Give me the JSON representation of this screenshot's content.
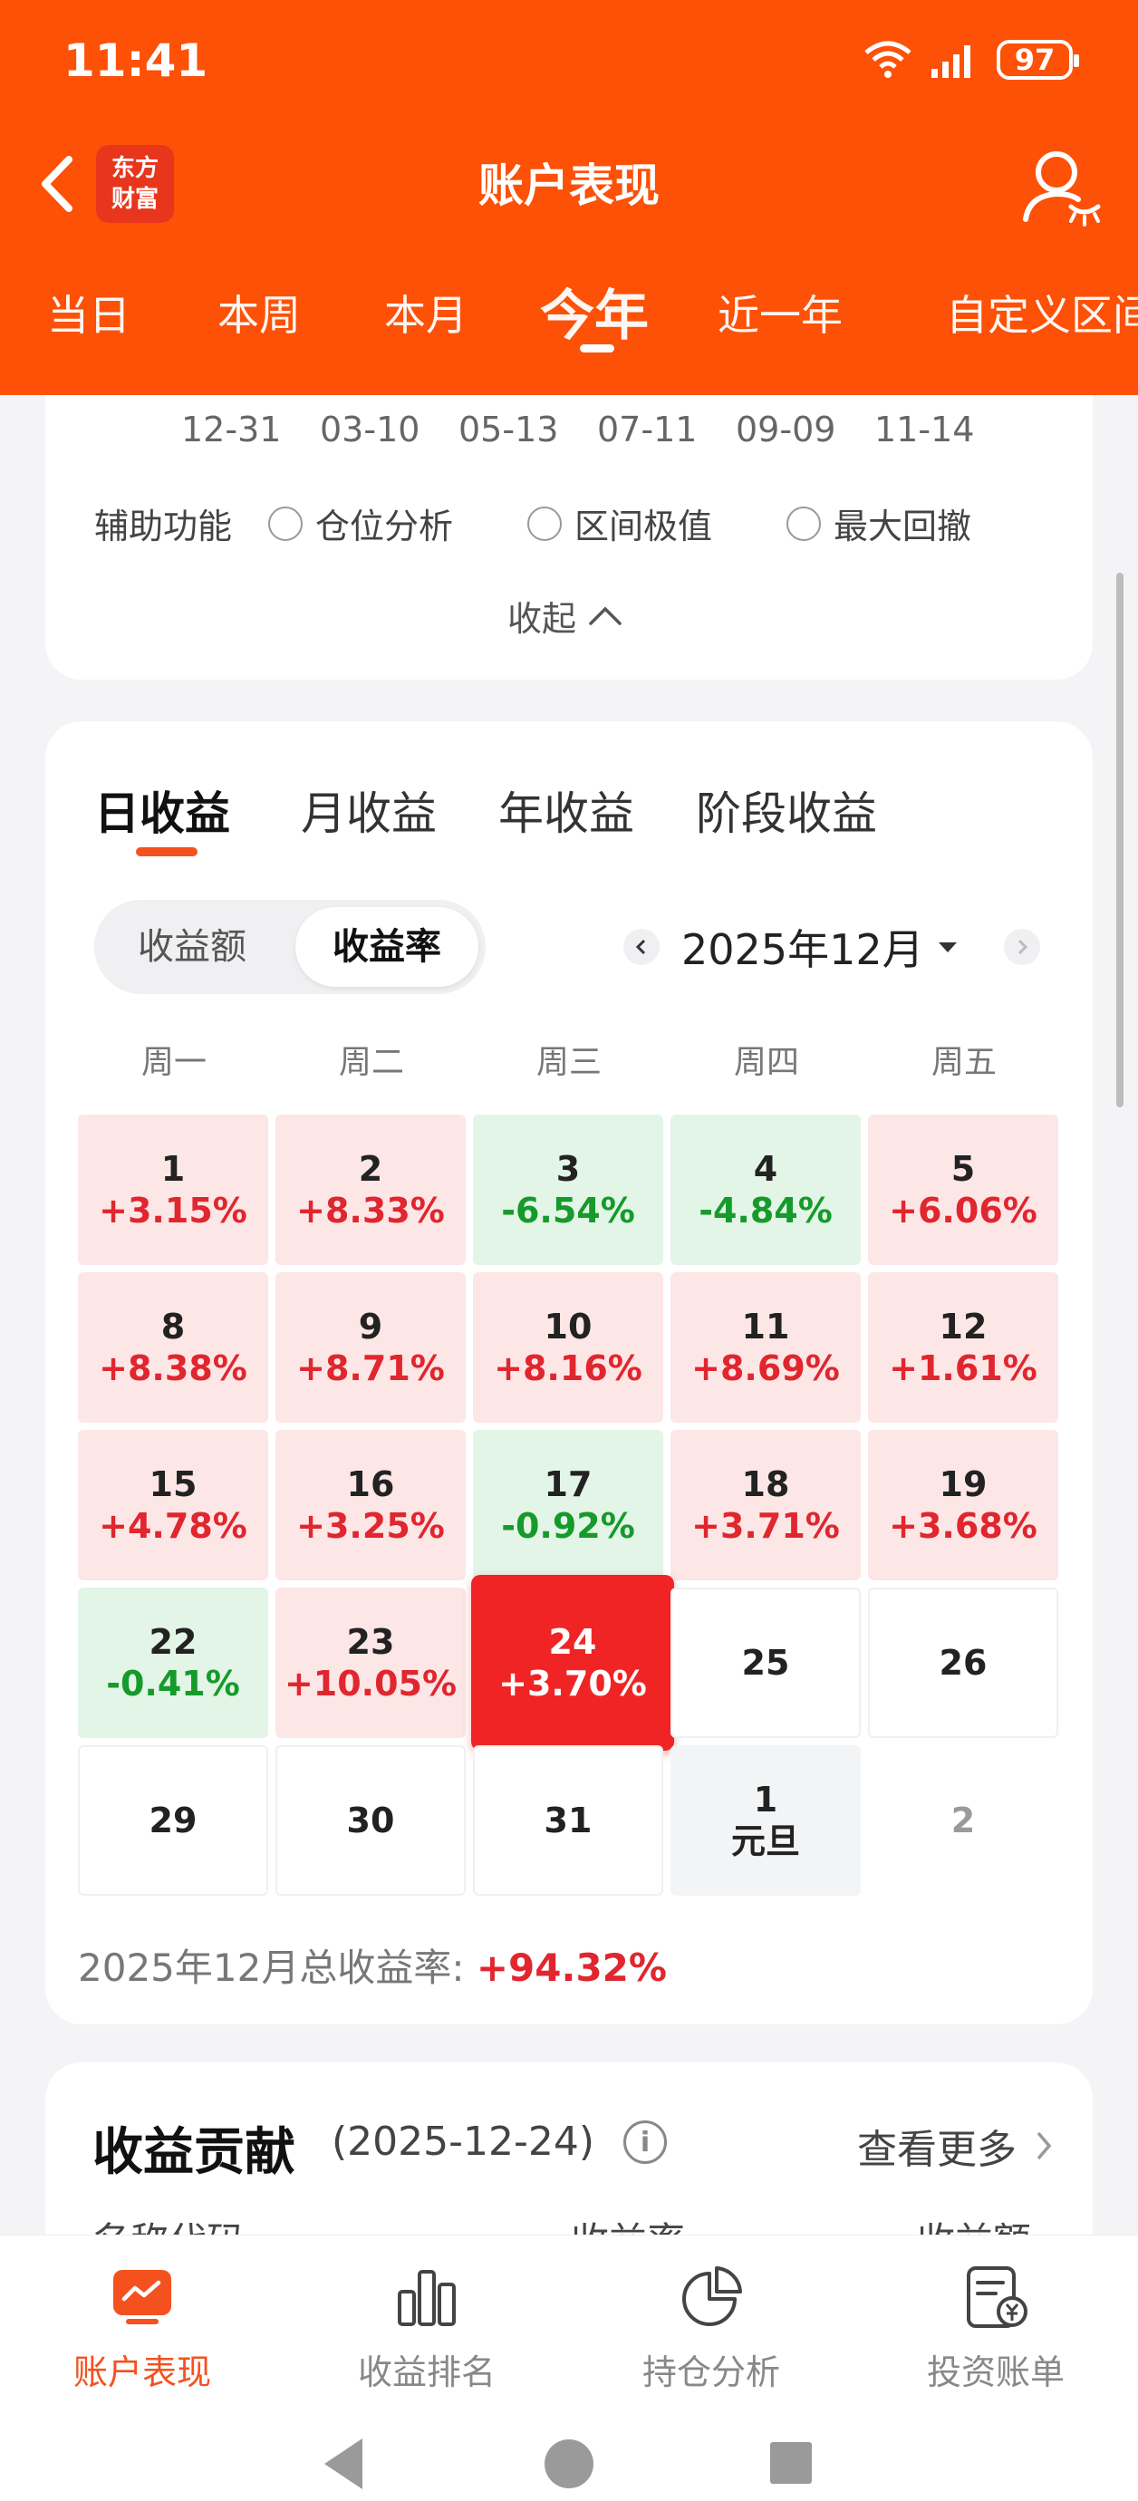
{
  "status": {
    "time": "11:41",
    "battery": "97"
  },
  "header": {
    "title": "账户表现",
    "logo_line1": "东方",
    "logo_line2": "财富",
    "tabs": [
      "当日",
      "本周",
      "本月",
      "今年",
      "近一年",
      "自定义区间"
    ],
    "active_tab": "今年"
  },
  "chart": {
    "x_labels": [
      "12-31",
      "03-10",
      "05-13",
      "07-11",
      "09-09",
      "11-14"
    ],
    "aux_label": "辅助功能",
    "aux_options": [
      "仓位分析",
      "区间极值",
      "最大回撤"
    ],
    "collapse_label": "收起"
  },
  "calendar": {
    "subtabs": [
      "日收益",
      "月收益",
      "年收益",
      "阶段收益"
    ],
    "active_subtab": "日收益",
    "segment": [
      "收益额",
      "收益率"
    ],
    "active_segment": "收益率",
    "month_label": "2025年12月",
    "weekdays": [
      "周一",
      "周二",
      "周三",
      "周四",
      "周五"
    ],
    "rows": [
      [
        {
          "day": "1",
          "pct": "+3.15%",
          "type": "pos"
        },
        {
          "day": "2",
          "pct": "+8.33%",
          "type": "pos"
        },
        {
          "day": "3",
          "pct": "-6.54%",
          "type": "neg"
        },
        {
          "day": "4",
          "pct": "-4.84%",
          "type": "neg"
        },
        {
          "day": "5",
          "pct": "+6.06%",
          "type": "pos"
        }
      ],
      [
        {
          "day": "8",
          "pct": "+8.38%",
          "type": "pos"
        },
        {
          "day": "9",
          "pct": "+8.71%",
          "type": "pos"
        },
        {
          "day": "10",
          "pct": "+8.16%",
          "type": "pos"
        },
        {
          "day": "11",
          "pct": "+8.69%",
          "type": "pos"
        },
        {
          "day": "12",
          "pct": "+1.61%",
          "type": "pos"
        }
      ],
      [
        {
          "day": "15",
          "pct": "+4.78%",
          "type": "pos"
        },
        {
          "day": "16",
          "pct": "+3.25%",
          "type": "pos"
        },
        {
          "day": "17",
          "pct": "-0.92%",
          "type": "neg"
        },
        {
          "day": "18",
          "pct": "+3.71%",
          "type": "pos"
        },
        {
          "day": "19",
          "pct": "+3.68%",
          "type": "pos"
        }
      ],
      [
        {
          "day": "22",
          "pct": "-0.41%",
          "type": "neg"
        },
        {
          "day": "23",
          "pct": "+10.05%",
          "type": "pos"
        },
        {
          "day": "24",
          "pct": "+3.70%",
          "type": "sel"
        },
        {
          "day": "25",
          "pct": "",
          "type": "empty"
        },
        {
          "day": "26",
          "pct": "",
          "type": "empty"
        }
      ],
      [
        {
          "day": "29",
          "pct": "",
          "type": "empty"
        },
        {
          "day": "30",
          "pct": "",
          "type": "empty"
        },
        {
          "day": "31",
          "pct": "",
          "type": "empty"
        },
        {
          "day": "1",
          "pct": "元旦",
          "type": "holiday"
        },
        {
          "day": "2",
          "pct": "",
          "type": "muted"
        }
      ]
    ],
    "total_label": "2025年12月总收益率:",
    "total_value": "+94.32%"
  },
  "contribution": {
    "title": "收益贡献",
    "date": "(2025-12-24)",
    "see_more": "查看更多",
    "columns": [
      "名称代码",
      "收益率",
      "收益额"
    ]
  },
  "bottom_nav": {
    "items": [
      "账户表现",
      "收益排名",
      "持仓分析",
      "投资账单"
    ],
    "active": "账户表现"
  },
  "colors": {
    "brand": "#fc5107",
    "up": "#e0262e",
    "down": "#159a2b"
  }
}
